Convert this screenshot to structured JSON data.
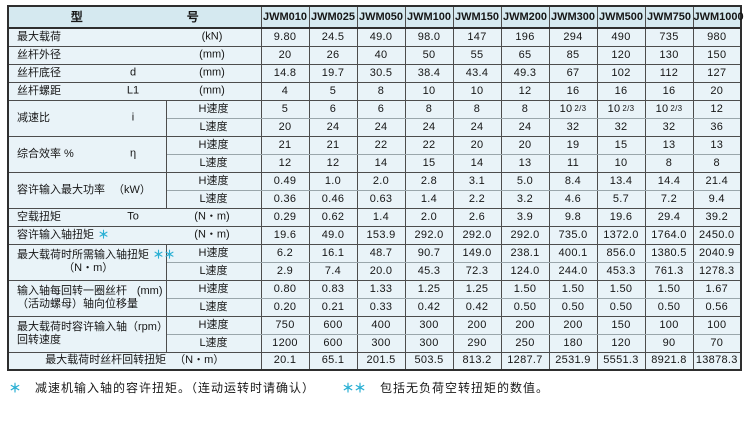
{
  "colors": {
    "header_bg": "#d5e9f0",
    "body_bg": "#e9f3f8",
    "grid_line": "#4d4d4d",
    "footnote_star": "#2bb0d4"
  },
  "header": {
    "type_label": "型",
    "number_label": "号",
    "models": [
      "JWM010",
      "JWM025",
      "JWM050",
      "JWM100",
      "JWM150",
      "JWM200",
      "JWM300",
      "JWM500",
      "JWM750",
      "JWM1000"
    ]
  },
  "speed_labels": {
    "high": "H速度",
    "low": "L速度"
  },
  "rows": [
    {
      "kind": "single",
      "name": "最大载荷",
      "symbol": "",
      "unit": "(kN)",
      "values": [
        "9.80",
        "24.5",
        "49.0",
        "98.0",
        "147",
        "196",
        "294",
        "490",
        "735",
        "980"
      ]
    },
    {
      "kind": "single",
      "name": "丝杆外径",
      "symbol": "",
      "unit": "(mm)",
      "values": [
        "20",
        "26",
        "40",
        "50",
        "55",
        "65",
        "85",
        "120",
        "130",
        "150"
      ]
    },
    {
      "kind": "single",
      "name": "丝杆底径",
      "symbol": "d",
      "unit": "(mm)",
      "values": [
        "14.8",
        "19.7",
        "30.5",
        "38.4",
        "43.4",
        "49.3",
        "67",
        "102",
        "112",
        "127"
      ]
    },
    {
      "kind": "single",
      "name": "丝杆螺距",
      "symbol": "L1",
      "unit": "(mm)",
      "values": [
        "4",
        "5",
        "8",
        "10",
        "10",
        "12",
        "16",
        "16",
        "16",
        "20"
      ]
    },
    {
      "kind": "dual",
      "name": "减速比",
      "symbol": "i",
      "high": [
        "5",
        "6",
        "6",
        "8",
        "8",
        "8",
        "10 2/3",
        "10 2/3",
        "10 2/3",
        "12"
      ],
      "low": [
        "20",
        "24",
        "24",
        "24",
        "24",
        "24",
        "32",
        "32",
        "32",
        "36"
      ]
    },
    {
      "kind": "dual",
      "name": "综合效率 %",
      "symbol": "η",
      "high": [
        "21",
        "21",
        "22",
        "22",
        "20",
        "20",
        "19",
        "15",
        "13",
        "13"
      ],
      "low": [
        "12",
        "12",
        "14",
        "15",
        "14",
        "13",
        "11",
        "10",
        "8",
        "8"
      ]
    },
    {
      "kind": "dual",
      "name": "容许输入最大功率",
      "unit": "（kW）",
      "high": [
        "0.49",
        "1.0",
        "2.0",
        "2.8",
        "3.1",
        "5.0",
        "8.4",
        "13.4",
        "14.4",
        "21.4"
      ],
      "low": [
        "0.36",
        "0.46",
        "0.63",
        "1.4",
        "2.2",
        "3.2",
        "4.6",
        "5.7",
        "7.2",
        "9.4"
      ]
    },
    {
      "kind": "single",
      "name": "空载扭矩",
      "symbol": "To",
      "unit": "(N・m)",
      "values": [
        "0.29",
        "0.62",
        "1.4",
        "2.0",
        "2.6",
        "3.9",
        "9.8",
        "19.6",
        "29.4",
        "39.2"
      ]
    },
    {
      "kind": "single",
      "name": "容许输入轴扭矩",
      "stars": "＊",
      "unit": "(N・m)",
      "values": [
        "19.6",
        "49.0",
        "153.9",
        "292.0",
        "292.0",
        "292.0",
        "735.0",
        "1372.0",
        "1764.0",
        "2450.0"
      ]
    },
    {
      "kind": "dual",
      "name": "最大载荷时所需输入轴扭矩",
      "stars": "＊＊",
      "name2": "（N・m）",
      "name2_centered": true,
      "high": [
        "6.2",
        "16.1",
        "48.7",
        "90.7",
        "149.0",
        "238.1",
        "400.1",
        "856.0",
        "1380.5",
        "2040.9"
      ],
      "low": [
        "2.9",
        "7.4",
        "20.0",
        "45.3",
        "72.3",
        "124.0",
        "244.0",
        "453.3",
        "761.3",
        "1278.3"
      ]
    },
    {
      "kind": "dual",
      "name": "输入轴每回转一圈丝杆",
      "unit": "(mm)",
      "name2": "（活动螺母）轴向位移量",
      "high": [
        "0.80",
        "0.83",
        "1.33",
        "1.25",
        "1.25",
        "1.50",
        "1.50",
        "1.50",
        "1.50",
        "1.67"
      ],
      "low": [
        "0.20",
        "0.21",
        "0.33",
        "0.42",
        "0.42",
        "0.50",
        "0.50",
        "0.50",
        "0.50",
        "0.56"
      ]
    },
    {
      "kind": "dual",
      "name": "最大载荷时容许输入轴",
      "unit": "（rpm）",
      "name2": "回转速度",
      "high": [
        "750",
        "600",
        "400",
        "300",
        "200",
        "200",
        "200",
        "150",
        "100",
        "100"
      ],
      "low": [
        "1200",
        "600",
        "300",
        "300",
        "290",
        "250",
        "180",
        "120",
        "90",
        "70"
      ]
    },
    {
      "kind": "center",
      "name": "最大载荷时丝杆回转扭矩",
      "unit": "（N・m）",
      "values": [
        "20.1",
        "65.1",
        "201.5",
        "503.5",
        "813.2",
        "1287.7",
        "2531.9",
        "5551.3",
        "8921.8",
        "13878.3"
      ]
    }
  ],
  "footnotes": [
    {
      "marker": "＊",
      "text": "减速机输入轴的容许扭矩。（连动运转时请确认）"
    },
    {
      "marker": "＊＊",
      "text": "包括无负荷空转扭矩的数值。"
    }
  ]
}
